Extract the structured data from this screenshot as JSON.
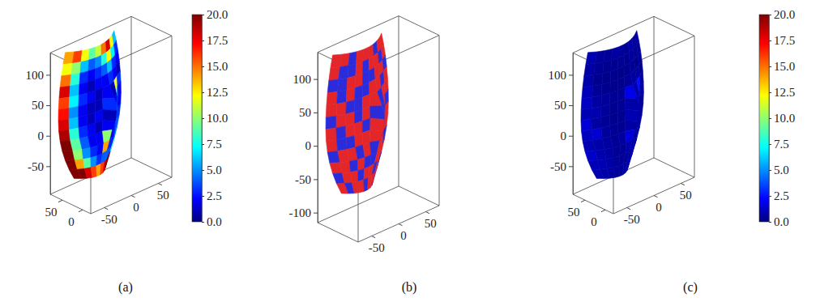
{
  "chart_data": [
    {
      "type": "surface3d",
      "label": "(a)",
      "xlim": [
        -20,
        80
      ],
      "xticks": [
        50,
        0
      ],
      "ylim": [
        -75,
        75
      ],
      "yticks": [
        -50,
        0,
        50
      ],
      "zlim": [
        -96,
        136
      ],
      "zticks": [
        100,
        50,
        0,
        -50
      ],
      "colorbar_range": [
        0,
        20
      ],
      "colorbar_ticks": [
        {
          "value": 0,
          "label": "0.0"
        },
        {
          "value": 2.5,
          "label": "2.5"
        },
        {
          "value": 5,
          "label": "5.0"
        },
        {
          "value": 7.5,
          "label": "7.5"
        },
        {
          "value": 10,
          "label": "10.0"
        },
        {
          "value": 12.5,
          "label": "12.5"
        },
        {
          "value": 15,
          "label": "15.0"
        },
        {
          "value": 17.5,
          "label": "17.5"
        },
        {
          "value": 20,
          "label": "20.0"
        }
      ],
      "cells": [
        [
          14,
          16,
          12,
          9,
          11,
          15,
          18,
          12,
          6
        ],
        [
          12,
          10,
          6,
          4,
          5,
          8,
          12,
          7,
          3
        ],
        [
          15,
          8,
          3,
          2,
          3,
          4,
          6,
          3,
          2
        ],
        [
          18,
          6,
          2,
          1,
          2,
          2,
          3,
          2,
          1
        ],
        [
          16,
          7,
          3,
          2,
          1,
          2,
          1,
          12,
          3
        ],
        [
          17,
          5,
          2,
          1,
          1,
          3,
          2,
          6,
          2
        ],
        [
          18,
          6,
          2,
          1,
          2,
          1,
          4,
          8,
          2
        ],
        [
          19,
          8,
          3,
          2,
          1,
          2,
          3,
          5,
          3
        ],
        [
          20,
          9,
          4,
          2,
          2,
          10,
          2,
          3,
          4
        ],
        [
          20,
          10,
          5,
          3,
          2,
          14,
          3,
          2,
          5
        ],
        [
          20,
          14,
          9,
          5,
          3,
          4,
          4,
          3,
          8
        ],
        [
          20,
          20,
          18,
          16,
          14,
          16,
          18,
          20,
          20
        ]
      ]
    },
    {
      "type": "surface3d",
      "label": "(b)",
      "xlim": [
        -20,
        80
      ],
      "ylim": [
        -75,
        75
      ],
      "yticks": [
        -50,
        0,
        50
      ],
      "zlim": [
        -115,
        140
      ],
      "zticks": [
        100,
        50,
        0,
        -50,
        -100
      ],
      "colors": [
        "#2b2bd9",
        "#e3262a"
      ],
      "cells": [
        [
          1,
          1,
          0,
          1,
          1,
          1,
          0,
          1,
          1
        ],
        [
          1,
          0,
          0,
          1,
          0,
          1,
          1,
          0,
          1
        ],
        [
          0,
          0,
          1,
          1,
          0,
          0,
          1,
          1,
          0
        ],
        [
          1,
          0,
          1,
          0,
          0,
          1,
          1,
          0,
          1
        ],
        [
          1,
          1,
          0,
          0,
          1,
          1,
          0,
          1,
          1
        ],
        [
          0,
          1,
          1,
          0,
          1,
          0,
          0,
          1,
          0
        ],
        [
          1,
          0,
          1,
          1,
          0,
          1,
          1,
          0,
          1
        ],
        [
          1,
          0,
          0,
          1,
          1,
          1,
          0,
          0,
          1
        ],
        [
          0,
          1,
          1,
          0,
          1,
          0,
          1,
          1,
          0
        ],
        [
          1,
          1,
          0,
          1,
          0,
          0,
          1,
          1,
          1
        ],
        [
          0,
          1,
          1,
          0,
          1,
          1,
          0,
          1,
          0
        ],
        [
          1,
          0,
          1,
          1,
          0,
          1,
          1,
          0,
          1
        ]
      ]
    },
    {
      "type": "surface3d",
      "label": "(c)",
      "xlim": [
        -20,
        80
      ],
      "xticks": [
        50,
        0
      ],
      "ylim": [
        -75,
        75
      ],
      "yticks": [
        -50,
        0,
        50
      ],
      "zlim": [
        -96,
        136
      ],
      "zticks": [
        100,
        50,
        0,
        -50
      ],
      "colorbar_range": [
        0,
        20
      ],
      "colorbar_ticks": [
        {
          "value": 0,
          "label": "0.0"
        },
        {
          "value": 2.5,
          "label": "2.5"
        },
        {
          "value": 5,
          "label": "5.0"
        },
        {
          "value": 7.5,
          "label": "7.5"
        },
        {
          "value": 10,
          "label": "10.0"
        },
        {
          "value": 12.5,
          "label": "12.5"
        },
        {
          "value": 15,
          "label": "15.0"
        },
        {
          "value": 17.5,
          "label": "17.5"
        },
        {
          "value": 20,
          "label": "20.0"
        }
      ],
      "cells": [
        [
          0.8,
          0.5,
          0.4,
          0.6,
          0.5,
          0.4,
          0.7,
          0.5,
          0.6
        ],
        [
          0.6,
          0.4,
          0.3,
          0.3,
          0.4,
          0.3,
          0.5,
          0.4,
          0.5
        ],
        [
          0.7,
          0.3,
          0.2,
          0.3,
          0.2,
          0.3,
          0.4,
          0.3,
          0.4
        ],
        [
          1.0,
          0.4,
          0.3,
          0.2,
          0.3,
          0.4,
          0.6,
          0.5,
          0.3
        ],
        [
          1.2,
          0.6,
          0.5,
          0.4,
          0.4,
          1.8,
          0.8,
          2.5,
          0.6
        ],
        [
          0.9,
          0.8,
          0.5,
          0.3,
          0.4,
          0.7,
          0.9,
          1.2,
          0.5
        ],
        [
          1.5,
          0.6,
          0.4,
          0.3,
          0.3,
          0.9,
          3.0,
          0.8,
          0.4
        ],
        [
          1.1,
          1.4,
          0.5,
          0.4,
          0.3,
          0.6,
          1.0,
          0.6,
          0.5
        ],
        [
          0.9,
          0.7,
          0.6,
          0.4,
          0.5,
          1.6,
          0.5,
          0.7,
          0.6
        ],
        [
          1.3,
          0.8,
          0.6,
          0.4,
          0.4,
          0.8,
          0.6,
          0.5,
          0.8
        ],
        [
          1.0,
          0.9,
          0.7,
          0.5,
          0.4,
          0.5,
          0.6,
          0.7,
          0.9
        ],
        [
          0.8,
          0.7,
          0.6,
          0.5,
          0.5,
          0.6,
          0.7,
          0.8,
          0.9
        ]
      ]
    }
  ]
}
